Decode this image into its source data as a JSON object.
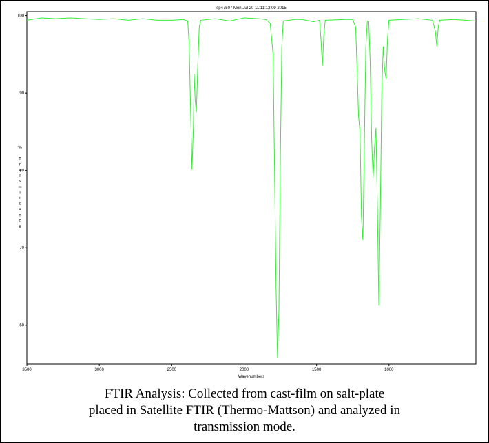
{
  "figure": {
    "header": "sp47507   Mon Jul 20 11:11:12:09 2015",
    "caption_lines": [
      "FTIR Analysis: Collected from cast-film on salt-plate",
      "placed in Satellite FTIR (Thermo-Mattson) and analyzed in",
      "transmission mode."
    ]
  },
  "chart_data": {
    "type": "line",
    "title": "sp47507   Mon Jul 20 11:11:12:09 2015",
    "xlabel": "Wavenumbers",
    "ylabel": "% Transmittance",
    "x_reversed": true,
    "xlim": [
      3500,
      400
    ],
    "ylim": [
      55,
      100.5
    ],
    "x_ticks": [
      3500,
      3000,
      2500,
      2000,
      1500,
      1000
    ],
    "y_ticks": [
      60,
      70,
      80,
      90,
      100
    ],
    "grid": false,
    "line_color": "#33ee33",
    "series": [
      {
        "points": [
          [
            3500,
            99.4
          ],
          [
            3400,
            99.7
          ],
          [
            3300,
            99.6
          ],
          [
            3200,
            99.7
          ],
          [
            3100,
            99.6
          ],
          [
            3000,
            99.5
          ],
          [
            2900,
            99.6
          ],
          [
            2800,
            99.4
          ],
          [
            2700,
            99.6
          ],
          [
            2600,
            99.4
          ],
          [
            2500,
            99.4
          ],
          [
            2420,
            99.5
          ],
          [
            2390,
            99.3
          ],
          [
            2380,
            96.5
          ],
          [
            2370,
            88.0
          ],
          [
            2360,
            80.1
          ],
          [
            2350,
            86.0
          ],
          [
            2345,
            92.5
          ],
          [
            2338,
            89.0
          ],
          [
            2330,
            87.5
          ],
          [
            2320,
            93.5
          ],
          [
            2310,
            98.5
          ],
          [
            2300,
            99.4
          ],
          [
            2200,
            99.6
          ],
          [
            2100,
            99.3
          ],
          [
            2000,
            99.7
          ],
          [
            1900,
            99.6
          ],
          [
            1850,
            99.5
          ],
          [
            1820,
            99.0
          ],
          [
            1800,
            95.0
          ],
          [
            1790,
            80.0
          ],
          [
            1780,
            65.0
          ],
          [
            1770,
            55.8
          ],
          [
            1760,
            62.0
          ],
          [
            1750,
            82.0
          ],
          [
            1740,
            96.0
          ],
          [
            1730,
            99.3
          ],
          [
            1650,
            99.5
          ],
          [
            1600,
            99.5
          ],
          [
            1520,
            99.2
          ],
          [
            1480,
            99.4
          ],
          [
            1470,
            97.0
          ],
          [
            1460,
            93.5
          ],
          [
            1450,
            97.5
          ],
          [
            1440,
            99.4
          ],
          [
            1300,
            99.5
          ],
          [
            1250,
            99.5
          ],
          [
            1230,
            98.5
          ],
          [
            1220,
            93.0
          ],
          [
            1210,
            87.0
          ],
          [
            1200,
            85.0
          ],
          [
            1190,
            74.0
          ],
          [
            1180,
            71.0
          ],
          [
            1170,
            84.0
          ],
          [
            1160,
            96.0
          ],
          [
            1150,
            99.3
          ],
          [
            1140,
            99.2
          ],
          [
            1130,
            94.0
          ],
          [
            1120,
            84.0
          ],
          [
            1110,
            79.0
          ],
          [
            1100,
            83.0
          ],
          [
            1090,
            85.5
          ],
          [
            1080,
            75.0
          ],
          [
            1070,
            62.5
          ],
          [
            1060,
            75.0
          ],
          [
            1050,
            90.0
          ],
          [
            1040,
            96.0
          ],
          [
            1030,
            93.0
          ],
          [
            1020,
            91.8
          ],
          [
            1010,
            97.0
          ],
          [
            1000,
            99.4
          ],
          [
            900,
            99.5
          ],
          [
            800,
            99.6
          ],
          [
            700,
            99.4
          ],
          [
            680,
            98.0
          ],
          [
            670,
            96.0
          ],
          [
            660,
            98.5
          ],
          [
            650,
            99.4
          ],
          [
            550,
            99.5
          ],
          [
            400,
            99.3
          ]
        ]
      }
    ]
  }
}
